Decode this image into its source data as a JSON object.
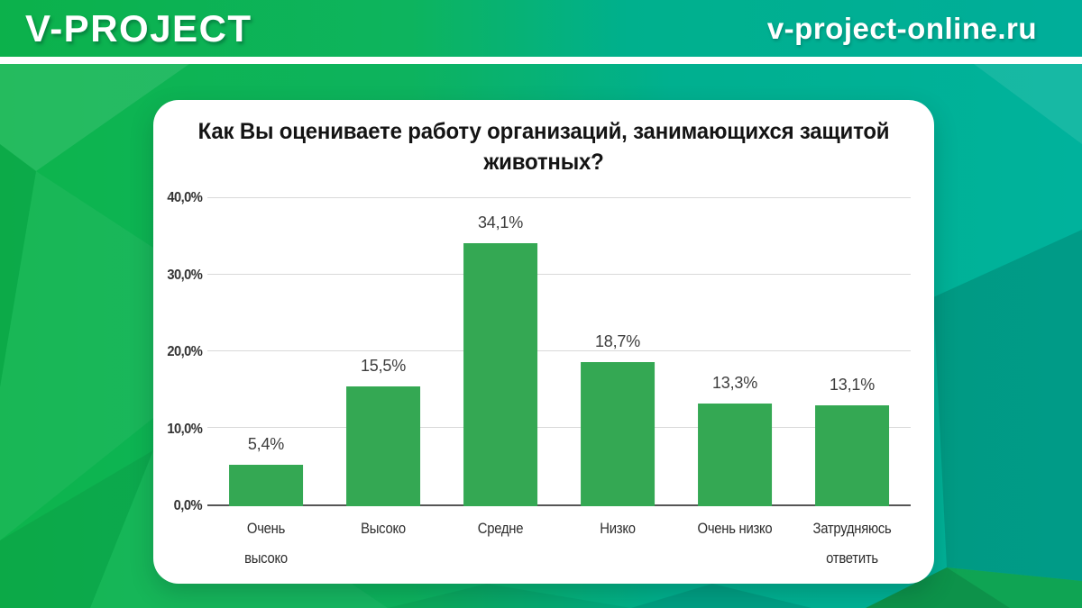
{
  "header": {
    "logo": "V-PROJECT",
    "url": "v-project-online.ru"
  },
  "colors": {
    "bar": "#34a853",
    "header_gradient_left": "#0cb14b",
    "header_gradient_right": "#00ae9a",
    "background_green": "#0db24b",
    "background_teal": "#00b19b",
    "background_dark_teal_facet": "#0a8f84",
    "card_background": "#ffffff",
    "axis_line": "#555555",
    "gridline": "#d9d9d9",
    "label_text": "#3d3d3d"
  },
  "chart_data": {
    "type": "bar",
    "title": "Как Вы оцениваете работу организаций, занимающихся защитой животных?",
    "categories": [
      "Очень\nвысоко",
      "Высоко",
      "Средне",
      "Низко",
      "Очень низко",
      "Затрудняюсь\nответить"
    ],
    "values": [
      5.4,
      15.5,
      34.1,
      18.7,
      13.3,
      13.1
    ],
    "value_labels": [
      "5,4%",
      "15,5%",
      "34,1%",
      "18,7%",
      "13,3%",
      "13,1%"
    ],
    "y_ticks": [
      "0,0%",
      "10,0%",
      "20,0%",
      "30,0%",
      "40,0%"
    ],
    "ylim": [
      0,
      40
    ],
    "xlabel": "",
    "ylabel": "",
    "grid": true,
    "legend": false
  }
}
